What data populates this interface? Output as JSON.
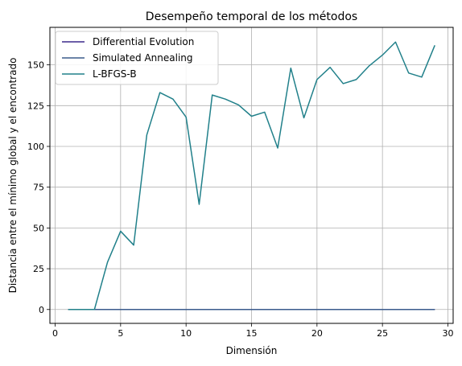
{
  "chart_data": {
    "type": "line",
    "title": "Desempeño temporal de los métodos",
    "xlabel": "Dimensión",
    "ylabel": "Distancia entre el mínimo global y el encontrado",
    "xlim": [
      -0.4,
      30.4
    ],
    "ylim": [
      -8.5,
      173
    ],
    "xticks": [
      0,
      5,
      10,
      15,
      20,
      25,
      30
    ],
    "yticks": [
      0,
      25,
      50,
      75,
      100,
      125,
      150
    ],
    "grid": true,
    "legend_position": "top-left",
    "x": [
      1,
      2,
      3,
      4,
      5,
      6,
      7,
      8,
      9,
      10,
      11,
      12,
      13,
      14,
      15,
      16,
      17,
      18,
      19,
      20,
      21,
      22,
      23,
      24,
      25,
      26,
      27,
      28,
      29
    ],
    "series": [
      {
        "name": "Differential Evolution",
        "color": "#3b2a8c",
        "values": [
          0,
          0,
          0,
          0,
          0,
          0,
          0,
          0,
          0,
          0,
          0,
          0,
          0,
          0,
          0,
          0,
          0,
          0,
          0,
          0,
          0,
          0,
          0,
          0,
          0,
          0,
          0,
          0,
          0
        ]
      },
      {
        "name": "Simulated Annealing",
        "color": "#3b5b8c",
        "values": [
          0,
          0,
          0,
          0,
          0,
          0,
          0,
          0,
          0,
          0,
          0,
          0,
          0,
          0,
          0,
          0,
          0,
          0,
          0,
          0,
          0,
          0,
          0,
          0,
          0,
          0,
          0,
          0,
          0
        ]
      },
      {
        "name": "L-BFGS-B",
        "color": "#21808a",
        "values": [
          0,
          0,
          0,
          29,
          48,
          39.5,
          107,
          133,
          129,
          118,
          64.5,
          131.5,
          129,
          125.5,
          118.5,
          121,
          99,
          148,
          117.5,
          141,
          148.5,
          138.5,
          141,
          149.5,
          156,
          164,
          145,
          142.5,
          162
        ]
      }
    ]
  }
}
